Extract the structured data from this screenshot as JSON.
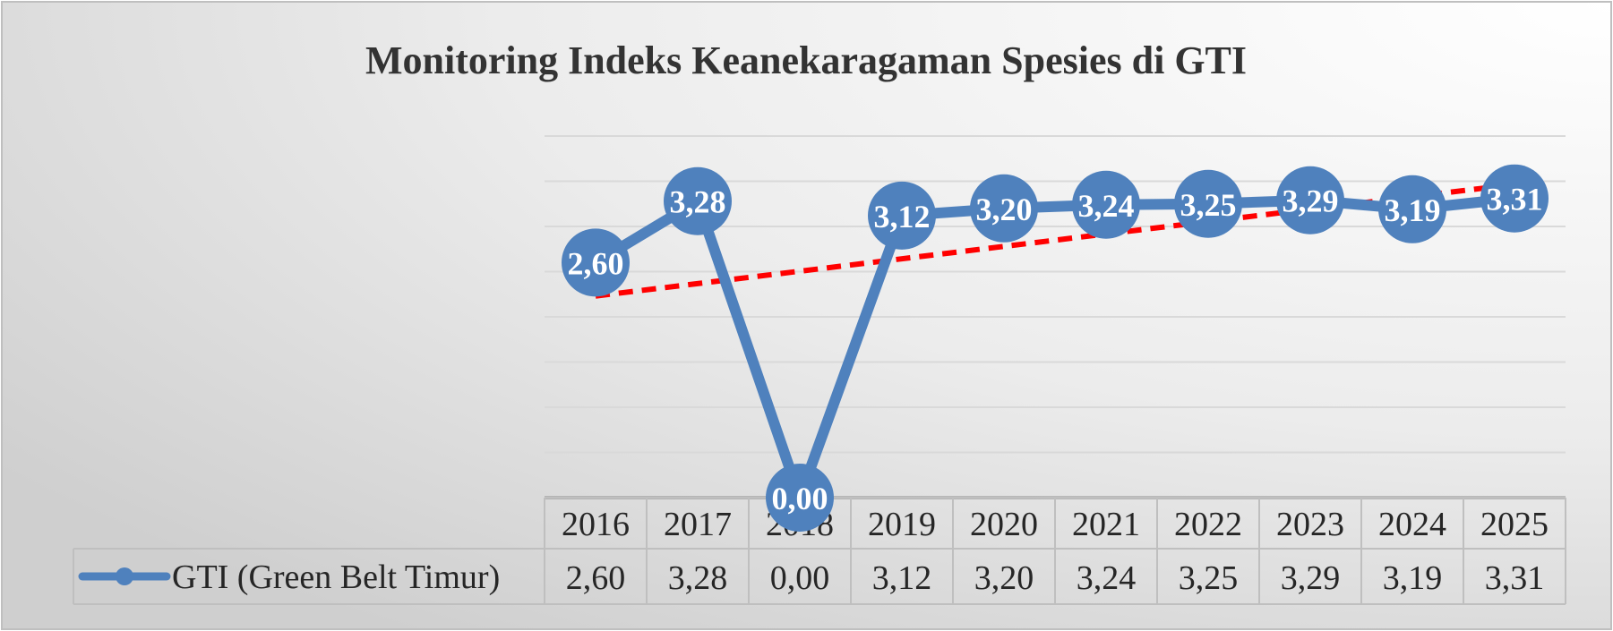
{
  "chart_data": {
    "type": "line",
    "title": "Monitoring Indeks Keanekaragaman Spesies di GTI",
    "xlabel": "",
    "ylabel": "",
    "categories": [
      "2016",
      "2017",
      "2018",
      "2019",
      "2020",
      "2021",
      "2022",
      "2023",
      "2024",
      "2025"
    ],
    "series": [
      {
        "name": "GTI (Green Belt Timur)",
        "values": [
          2.6,
          3.28,
          0.0,
          3.12,
          3.2,
          3.24,
          3.25,
          3.29,
          3.19,
          3.31
        ],
        "data_labels": [
          "2,60",
          "3,28",
          "0,00",
          "3,12",
          "3,20",
          "3,24",
          "3,25",
          "3,29",
          "3,19",
          "3,31"
        ],
        "color": "#4f81bd"
      }
    ],
    "trendline": {
      "type": "linear",
      "style": "dashed",
      "color": "#ff0000"
    },
    "ylim": [
      0,
      4
    ],
    "grid": true,
    "data_table": true,
    "legend": "in-data-table",
    "colors": {
      "line": "#4f81bd",
      "trend": "#ff0000",
      "grid": "#d9d9d9",
      "text": "#262626"
    }
  }
}
